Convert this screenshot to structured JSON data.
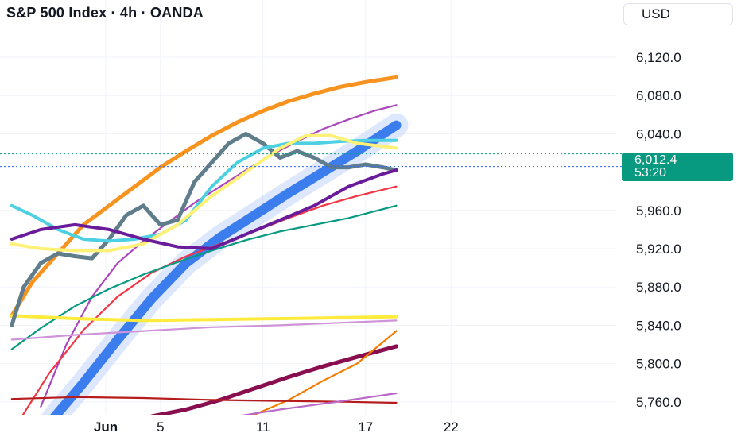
{
  "header": {
    "title": "S&P 500 Index · 4h · OANDA",
    "currency": "USD"
  },
  "price_label": {
    "value": "6,012.4",
    "countdown": "53:20",
    "color": "#089981"
  },
  "chart_data": {
    "type": "line",
    "title": "S&P 500 Index · 4h · OANDA",
    "y_ticks": [
      "6,120.0",
      "6,080.0",
      "6,040.0",
      "5,960.0",
      "5,920.0",
      "5,880.0",
      "5,840.0",
      "5,800.0",
      "5,760.0"
    ],
    "x_ticks": [
      "Jun",
      "5",
      "11",
      "17",
      "22"
    ],
    "ylim": [
      5745,
      6140
    ],
    "last_price": 6012.4,
    "grid": true,
    "series": [
      {
        "color": "#f7931e",
        "values": [
          [
            26.3,
            5850
          ],
          [
            27.5,
            5885
          ],
          [
            29,
            5915
          ],
          [
            30.5,
            5945
          ],
          [
            32,
            5965
          ],
          [
            33.5,
            5985
          ],
          [
            35,
            6005
          ],
          [
            36.5,
            6022
          ],
          [
            38,
            6038
          ],
          [
            39.5,
            6052
          ],
          [
            41,
            6064
          ],
          [
            42.5,
            6074
          ],
          [
            44,
            6082
          ],
          [
            45.5,
            6089
          ],
          [
            47,
            6094
          ],
          [
            48.8,
            6099
          ]
        ]
      },
      {
        "color": "#3b7ded",
        "values": [
          [
            28.7,
            5742
          ],
          [
            30.5,
            5780
          ],
          [
            32.5,
            5825
          ],
          [
            34.5,
            5868
          ],
          [
            36.5,
            5905
          ],
          [
            38.5,
            5932
          ],
          [
            40.5,
            5955
          ],
          [
            42.5,
            5978
          ],
          [
            44.5,
            6000
          ],
          [
            46.5,
            6022
          ],
          [
            48.8,
            6049
          ]
        ]
      },
      {
        "color": "#ab47bc",
        "values": [
          [
            28,
            5755
          ],
          [
            29.5,
            5820
          ],
          [
            31,
            5870
          ],
          [
            32.5,
            5905
          ],
          [
            34,
            5928
          ],
          [
            35.5,
            5948
          ],
          [
            37,
            5968
          ],
          [
            38.5,
            5985
          ],
          [
            40,
            6002
          ],
          [
            41.5,
            6018
          ],
          [
            43,
            6032
          ],
          [
            44.5,
            6045
          ],
          [
            46,
            6055
          ],
          [
            47.5,
            6064
          ],
          [
            48.8,
            6070
          ]
        ]
      },
      {
        "color": "#f23645",
        "values": [
          [
            26.3,
            5728
          ],
          [
            28.5,
            5790
          ],
          [
            30.5,
            5835
          ],
          [
            32.5,
            5870
          ],
          [
            34.5,
            5895
          ],
          [
            36.5,
            5912
          ],
          [
            38.5,
            5925
          ],
          [
            40.5,
            5938
          ],
          [
            42.5,
            5952
          ],
          [
            44.5,
            5965
          ],
          [
            46.5,
            5975
          ],
          [
            48.8,
            5985
          ]
        ]
      },
      {
        "color": "#089981",
        "values": [
          [
            26.3,
            5815
          ],
          [
            28,
            5837
          ],
          [
            30,
            5860
          ],
          [
            32,
            5878
          ],
          [
            34,
            5893
          ],
          [
            36,
            5906
          ],
          [
            38,
            5918
          ],
          [
            40,
            5929
          ],
          [
            42,
            5938
          ],
          [
            44,
            5945
          ],
          [
            46,
            5952
          ],
          [
            48.8,
            5965
          ]
        ]
      },
      {
        "color": "#ffeb3b",
        "values": [
          [
            26.3,
            5850
          ],
          [
            30,
            5847
          ],
          [
            34,
            5845
          ],
          [
            38,
            5846
          ],
          [
            42,
            5847
          ],
          [
            46,
            5848
          ],
          [
            48.8,
            5849
          ]
        ]
      },
      {
        "color": "#ce93d8",
        "values": [
          [
            26.3,
            5825
          ],
          [
            30,
            5830
          ],
          [
            34,
            5834
          ],
          [
            38,
            5838
          ],
          [
            42,
            5840
          ],
          [
            46,
            5843
          ],
          [
            48.8,
            5845
          ]
        ]
      },
      {
        "color": "#880e4f",
        "values": [
          [
            34.5,
            5745
          ],
          [
            36.5,
            5752
          ],
          [
            38.5,
            5762
          ],
          [
            40.5,
            5774
          ],
          [
            42.5,
            5786
          ],
          [
            44.5,
            5797
          ],
          [
            46.5,
            5807
          ],
          [
            48.8,
            5818
          ]
        ]
      },
      {
        "color": "#f57c00",
        "values": [
          [
            40.3,
            5745
          ],
          [
            42.5,
            5762
          ],
          [
            44.5,
            5782
          ],
          [
            46.5,
            5800
          ],
          [
            48.8,
            5834
          ]
        ]
      },
      {
        "color": "#b71c1c",
        "values": [
          [
            26.3,
            5763
          ],
          [
            30,
            5765
          ],
          [
            34,
            5764
          ],
          [
            38,
            5762
          ],
          [
            42,
            5761
          ],
          [
            46,
            5760
          ],
          [
            48.8,
            5759
          ]
        ]
      },
      {
        "color": "#ba68c8",
        "values": [
          [
            39.5,
            5745
          ],
          [
            42,
            5752
          ],
          [
            44.5,
            5758
          ],
          [
            46.5,
            5763
          ],
          [
            48.8,
            5769
          ]
        ]
      },
      {
        "color": "#607d8b",
        "values": [
          [
            26.3,
            5840
          ],
          [
            27,
            5880
          ],
          [
            28,
            5905
          ],
          [
            29,
            5915
          ],
          [
            30,
            5912
          ],
          [
            31,
            5910
          ],
          [
            32,
            5930
          ],
          [
            33,
            5955
          ],
          [
            34,
            5965
          ],
          [
            35,
            5945
          ],
          [
            36,
            5950
          ],
          [
            37,
            5990
          ],
          [
            38,
            6010
          ],
          [
            39,
            6030
          ],
          [
            40,
            6040
          ],
          [
            41,
            6030
          ],
          [
            42,
            6015
          ],
          [
            43,
            6022
          ],
          [
            44,
            6015
          ],
          [
            45,
            6005
          ],
          [
            46,
            6005
          ],
          [
            47,
            6008
          ],
          [
            48,
            6005
          ],
          [
            48.8,
            6002
          ]
        ]
      },
      {
        "color": "#4dd0e1",
        "values": [
          [
            26.3,
            5965
          ],
          [
            27.5,
            5955
          ],
          [
            29,
            5940
          ],
          [
            30.5,
            5930
          ],
          [
            32,
            5928
          ],
          [
            33.5,
            5930
          ],
          [
            35,
            5935
          ],
          [
            36.5,
            5950
          ],
          [
            38,
            5985
          ],
          [
            39.5,
            6010
          ],
          [
            41,
            6025
          ],
          [
            42.5,
            6030
          ],
          [
            44,
            6030
          ],
          [
            45.5,
            6032
          ],
          [
            47,
            6033
          ],
          [
            48.8,
            6033
          ]
        ]
      },
      {
        "color": "#fff176",
        "values": [
          [
            26.3,
            5925
          ],
          [
            28,
            5920
          ],
          [
            30,
            5918
          ],
          [
            32,
            5918
          ],
          [
            34,
            5925
          ],
          [
            36,
            5945
          ],
          [
            38,
            5975
          ],
          [
            40,
            6000
          ],
          [
            42,
            6025
          ],
          [
            43.5,
            6038
          ],
          [
            45,
            6038
          ],
          [
            46.5,
            6030
          ],
          [
            48,
            6027
          ],
          [
            48.8,
            6025
          ]
        ]
      },
      {
        "color": "#6a1b9a",
        "values": [
          [
            26.3,
            5930
          ],
          [
            28,
            5940
          ],
          [
            30,
            5945
          ],
          [
            32,
            5940
          ],
          [
            34,
            5930
          ],
          [
            36,
            5922
          ],
          [
            38,
            5920
          ],
          [
            40,
            5935
          ],
          [
            42,
            5950
          ],
          [
            44,
            5965
          ],
          [
            46,
            5985
          ],
          [
            48,
            5998
          ],
          [
            48.8,
            6002
          ]
        ]
      }
    ]
  }
}
